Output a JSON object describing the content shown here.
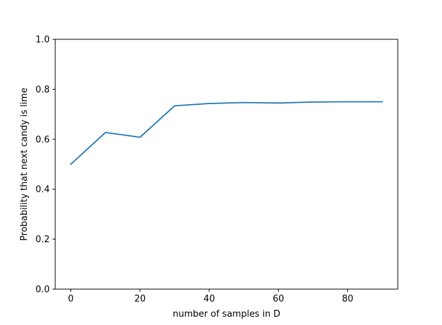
{
  "chart_data": {
    "type": "line",
    "title": "",
    "xlabel": "number of samples in D",
    "ylabel": "Probability that next candy is lime",
    "xlim": [
      -4.5,
      94.5
    ],
    "ylim": [
      0.0,
      1.0
    ],
    "grid": false,
    "x_ticks": [
      0,
      20,
      40,
      60,
      80
    ],
    "x_tick_labels": [
      "0",
      "20",
      "40",
      "60",
      "80"
    ],
    "y_ticks": [
      0.0,
      0.2,
      0.4,
      0.6,
      0.8,
      1.0
    ],
    "y_tick_labels": [
      "0.0",
      "0.2",
      "0.4",
      "0.6",
      "0.8",
      "1.0"
    ],
    "series": [
      {
        "color": "#1f77b4",
        "x": [
          0,
          10,
          20,
          30,
          40,
          50,
          60,
          70,
          80,
          90
        ],
        "y": [
          0.5,
          0.627,
          0.608,
          0.734,
          0.743,
          0.747,
          0.745,
          0.749,
          0.75,
          0.75
        ]
      }
    ]
  }
}
